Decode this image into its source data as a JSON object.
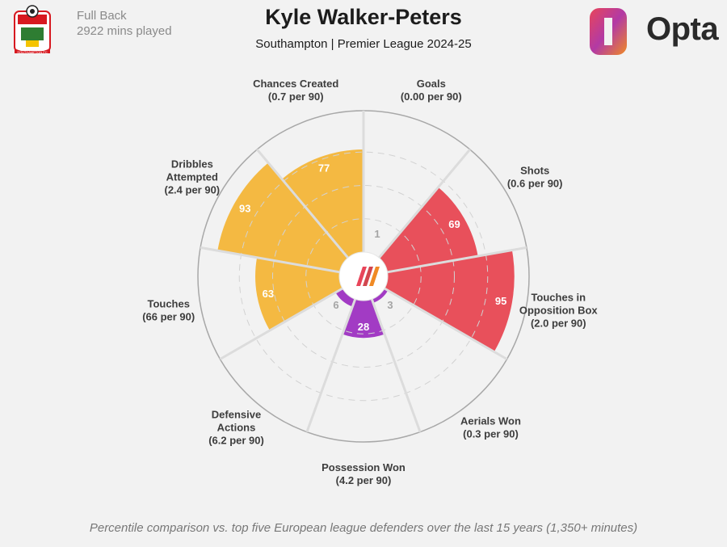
{
  "header": {
    "position": "Full Back",
    "minutes": "2922 mins played",
    "player_name": "Kyle Walker-Peters",
    "subtitle": "Southampton | Premier League 2024-25",
    "brand": "Opta",
    "crest_text": "SOUTHAMPTON FC"
  },
  "footnote": "Percentile comparison vs. top five European league defenders over the last 15 years (1,350+ minutes)",
  "colors": {
    "background": "#f2f2f2",
    "attacking": "#e8505b",
    "possession": "#f4b942",
    "defending": "#a23bc4",
    "rings": "#d2d2d2",
    "spokes": "#dcdcdc",
    "outer_circle": "#a8a8a8"
  },
  "chart_data": {
    "type": "radar",
    "title": "Kyle Walker-Peters",
    "scale": [
      0,
      100
    ],
    "ring_labels": [
      "1",
      "3",
      "6"
    ],
    "categories": [
      {
        "name_lines": [
          "Goals"
        ],
        "stat": "(0.00 per 90)",
        "percentile": 0,
        "group": "attacking"
      },
      {
        "name_lines": [
          "Shots"
        ],
        "stat": "(0.6 per 90)",
        "percentile": 69,
        "group": "attacking"
      },
      {
        "name_lines": [
          "Touches in",
          "Opposition Box"
        ],
        "stat": "(2.0 per 90)",
        "percentile": 95,
        "group": "attacking"
      },
      {
        "name_lines": [
          "Aerials Won"
        ],
        "stat": "(0.3 per 90)",
        "percentile": 3,
        "group": "defending"
      },
      {
        "name_lines": [
          "Possession Won"
        ],
        "stat": "(4.2 per 90)",
        "percentile": 28,
        "group": "defending"
      },
      {
        "name_lines": [
          "Defensive",
          "Actions"
        ],
        "stat": "(6.2 per 90)",
        "percentile": 6,
        "group": "defending"
      },
      {
        "name_lines": [
          "Touches"
        ],
        "stat": "(66 per 90)",
        "percentile": 63,
        "group": "possession"
      },
      {
        "name_lines": [
          "Dribbles",
          "Attempted"
        ],
        "stat": "(2.4 per 90)",
        "percentile": 93,
        "group": "possession"
      },
      {
        "name_lines": [
          "Chances Created"
        ],
        "stat": "(0.7 per 90)",
        "percentile": 77,
        "group": "possession"
      }
    ],
    "printed_values": [
      "77",
      "69",
      "95",
      "28",
      "63",
      "93"
    ]
  }
}
